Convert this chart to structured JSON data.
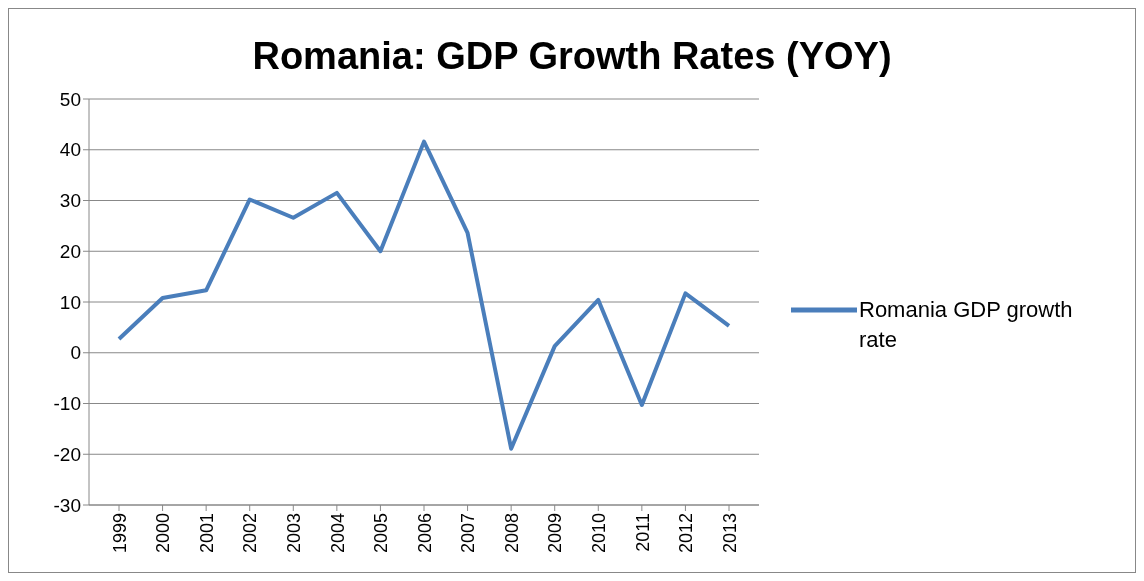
{
  "chart_data": {
    "type": "line",
    "title": "Romania: GDP Growth Rates (YOY)",
    "categories": [
      "1999",
      "2000",
      "2001",
      "2002",
      "2003",
      "2004",
      "2005",
      "2006",
      "2007",
      "2008",
      "2009",
      "2010",
      "2011",
      "2012",
      "2013"
    ],
    "series": [
      {
        "name": "Romania GDP growth rate",
        "color": "#4a7ebb",
        "values": [
          2.7,
          10.8,
          12.3,
          30.2,
          26.6,
          31.5,
          20,
          41.6,
          23.6,
          -18.9,
          1.3,
          10.4,
          -10.3,
          11.7,
          5.3
        ]
      }
    ],
    "ylim": [
      -30,
      50
    ],
    "yticks": [
      -30,
      -20,
      -10,
      0,
      10,
      20,
      30,
      40,
      50
    ],
    "grid": "y",
    "legend": "right",
    "marker": "none",
    "line_style": "solid"
  }
}
